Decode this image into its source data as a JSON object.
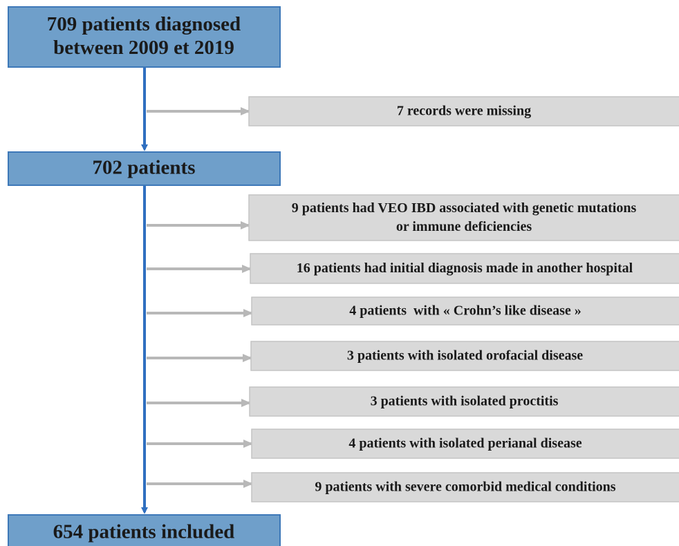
{
  "nodes": [
    {
      "lines": [
        "709 patients diagnosed",
        "between 2009 et 2019"
      ]
    },
    {
      "lines": [
        "702 patients"
      ]
    },
    {
      "lines": [
        "654 patients included"
      ]
    }
  ],
  "exclusions": [
    {
      "lines": [
        "7 records were missing"
      ]
    },
    {
      "lines": [
        "9 patients had VEO IBD associated with genetic mutations",
        "or immune deficiencies"
      ]
    },
    {
      "lines": [
        "16 patients had initial diagnosis made in another hospital"
      ]
    },
    {
      "lines": [
        "4 patients  with « Crohn’s like disease »"
      ]
    },
    {
      "lines": [
        "3 patients with isolated orofacial disease"
      ]
    },
    {
      "lines": [
        "3 patients with isolated proctitis"
      ]
    },
    {
      "lines": [
        "4 patients with isolated perianal disease"
      ]
    },
    {
      "lines": [
        "9 patients with severe comorbid medical conditions"
      ]
    }
  ]
}
